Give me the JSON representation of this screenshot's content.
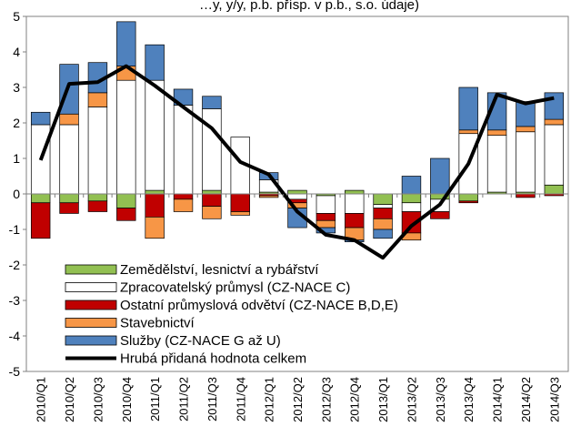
{
  "chart_data": {
    "type": "bar",
    "stacked": true,
    "title_fragment": "…y, y/y, p.b. přísp. v p.b., s.o. údaje)",
    "categories": [
      "2010/Q1",
      "2010/Q2",
      "2010/Q3",
      "2010/Q4",
      "2011/Q1",
      "2011/Q2",
      "2011/Q3",
      "2011/Q4",
      "2012/Q1",
      "2012/Q2",
      "2012/Q3",
      "2012/Q4",
      "2013/Q1",
      "2013/Q2",
      "2013/Q3",
      "2013/Q4",
      "2014/Q1",
      "2014/Q2",
      "2014/Q3"
    ],
    "ylim": [
      -5,
      5
    ],
    "yticks": [
      "5",
      "4",
      "3",
      "2",
      "1",
      "0",
      "-1",
      "-2",
      "-3",
      "-4",
      "-5"
    ],
    "grid": false,
    "legend_position": "lower-left inside plot",
    "series": [
      {
        "name": "Zemědělství, lesnictví a rybářství",
        "kind": "bar",
        "color": "#92c052",
        "values": [
          -0.25,
          -0.25,
          -0.2,
          -0.4,
          0.1,
          0.0,
          0.1,
          0.0,
          0.05,
          0.1,
          -0.05,
          0.1,
          -0.3,
          -0.25,
          -0.15,
          -0.2,
          0.05,
          0.05,
          0.25
        ]
      },
      {
        "name": "Zpracovatelský průmysl (CZ-NACE C)",
        "kind": "bar",
        "color": "#ffffff",
        "values": [
          1.95,
          1.95,
          2.45,
          3.2,
          3.1,
          2.5,
          2.3,
          1.6,
          0.35,
          -0.15,
          -0.5,
          -0.55,
          -0.1,
          -0.25,
          -0.35,
          1.7,
          1.6,
          1.7,
          1.7
        ]
      },
      {
        "name": "Ostatní průmyslová odvětví (CZ-NACE B,D,E)",
        "kind": "bar",
        "color": "#c00000",
        "values": [
          -1.0,
          -0.3,
          -0.3,
          -0.35,
          -0.65,
          -0.15,
          -0.35,
          -0.5,
          -0.05,
          -0.1,
          -0.2,
          -0.4,
          -0.3,
          -0.6,
          -0.2,
          -0.05,
          0.0,
          -0.1,
          -0.05
        ]
      },
      {
        "name": "Stavebnictví",
        "kind": "bar",
        "color": "#f79646",
        "values": [
          0.0,
          0.3,
          0.4,
          0.4,
          -0.6,
          -0.35,
          -0.35,
          -0.1,
          -0.05,
          -0.15,
          -0.2,
          -0.35,
          -0.3,
          -0.2,
          0.0,
          0.1,
          0.15,
          0.15,
          0.15
        ]
      },
      {
        "name": "Služby (CZ-NACE G až U)",
        "kind": "bar",
        "color": "#4f81bd",
        "values": [
          0.35,
          1.4,
          0.85,
          1.25,
          1.0,
          0.45,
          0.35,
          0.0,
          0.2,
          -0.55,
          -0.15,
          -0.05,
          -0.25,
          0.5,
          1.0,
          1.2,
          1.05,
          0.7,
          0.75
        ]
      },
      {
        "name": "Hrubá přidaná hodnota celkem",
        "kind": "line",
        "color": "#000000",
        "values": [
          0.95,
          3.1,
          3.15,
          3.6,
          3.05,
          2.45,
          1.85,
          0.9,
          0.55,
          -0.5,
          -1.15,
          -1.3,
          -1.8,
          -0.9,
          -0.3,
          0.85,
          2.8,
          2.55,
          2.7
        ]
      }
    ]
  }
}
